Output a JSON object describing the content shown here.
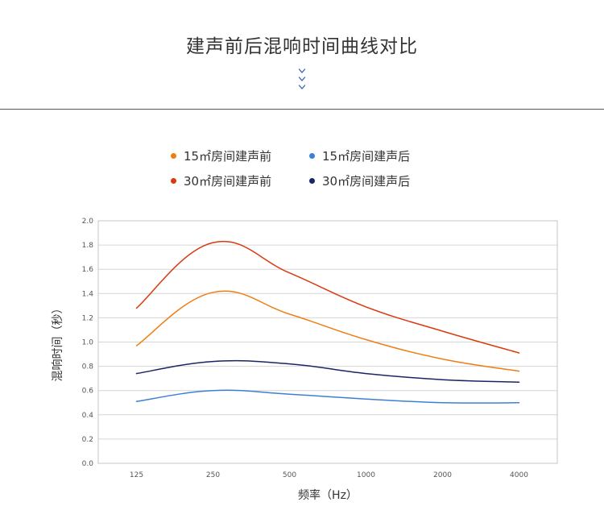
{
  "header": {
    "title": "建声前后混响时间曲线对比",
    "chevron_color": "#3a5fb0"
  },
  "chart_data": {
    "type": "line",
    "title": "",
    "xlabel": "频率（Hz）",
    "ylabel": "混响时间（秒）",
    "categories": [
      "125",
      "250",
      "500",
      "1000",
      "2000",
      "4000"
    ],
    "ylim": [
      0,
      2.0
    ],
    "yticks": [
      "0.0",
      "0.2",
      "0.4",
      "0.6",
      "0.8",
      "1.0",
      "1.2",
      "1.4",
      "1.6",
      "1.8",
      "2.0"
    ],
    "grid": true,
    "legend_position": "top",
    "series": [
      {
        "name": "15㎡房间建声前",
        "color": "#f07d12",
        "values": [
          0.97,
          1.41,
          1.23,
          1.02,
          0.86,
          0.76
        ]
      },
      {
        "name": "15㎡房间建声后",
        "color": "#3e7fd6",
        "values": [
          0.51,
          0.6,
          0.57,
          0.53,
          0.5,
          0.5
        ]
      },
      {
        "name": "30㎡房间建声前",
        "color": "#d93a0e",
        "values": [
          1.28,
          1.82,
          1.57,
          1.29,
          1.09,
          0.91
        ]
      },
      {
        "name": "30㎡房间建声后",
        "color": "#1a2466",
        "values": [
          0.74,
          0.84,
          0.82,
          0.74,
          0.69,
          0.67
        ]
      }
    ]
  }
}
